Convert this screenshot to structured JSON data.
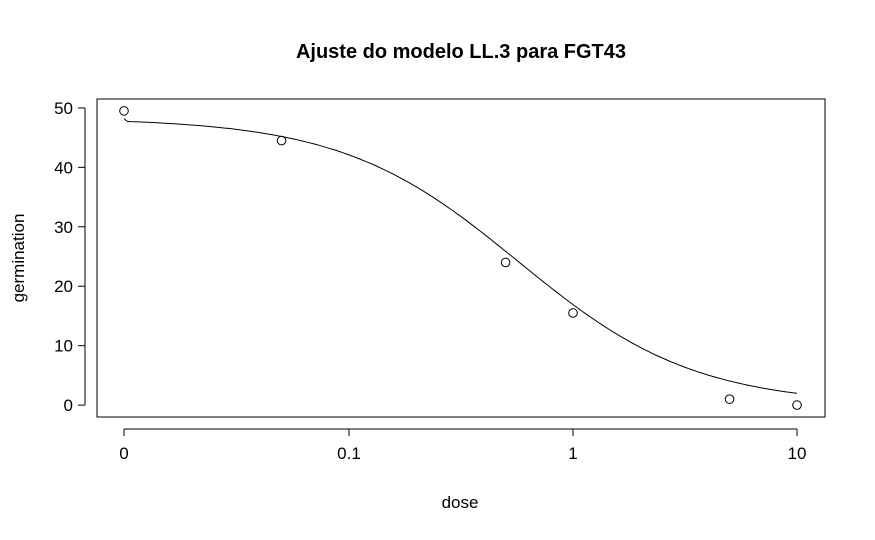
{
  "chart_data": {
    "type": "scatter",
    "title": "Ajuste do modelo LL.3 para FGT43",
    "xlabel": "dose",
    "ylabel": "germination",
    "x_scale": "log (dose 0 drawn at left)",
    "x_ticks": [
      {
        "value": 0,
        "label": "0"
      },
      {
        "value": 0.1,
        "label": "0.1"
      },
      {
        "value": 1,
        "label": "1"
      },
      {
        "value": 10,
        "label": "10"
      }
    ],
    "y_ticks": [
      {
        "value": 0,
        "label": "0"
      },
      {
        "value": 10,
        "label": "10"
      },
      {
        "value": 20,
        "label": "20"
      },
      {
        "value": 30,
        "label": "30"
      },
      {
        "value": 40,
        "label": "40"
      },
      {
        "value": 50,
        "label": "50"
      }
    ],
    "ylim": [
      -2,
      51.5
    ],
    "points": [
      {
        "x": 0,
        "y": 49.5
      },
      {
        "x": 0.05,
        "y": 44.5
      },
      {
        "x": 0.5,
        "y": 24
      },
      {
        "x": 1,
        "y": 15.5
      },
      {
        "x": 5,
        "y": 1
      },
      {
        "x": 10,
        "y": 0
      }
    ],
    "fitted_curve": {
      "model": "LL.3",
      "upper": 48.3,
      "ed50": 0.57,
      "slope": 1.1
    },
    "grid": false,
    "legend": "none"
  }
}
